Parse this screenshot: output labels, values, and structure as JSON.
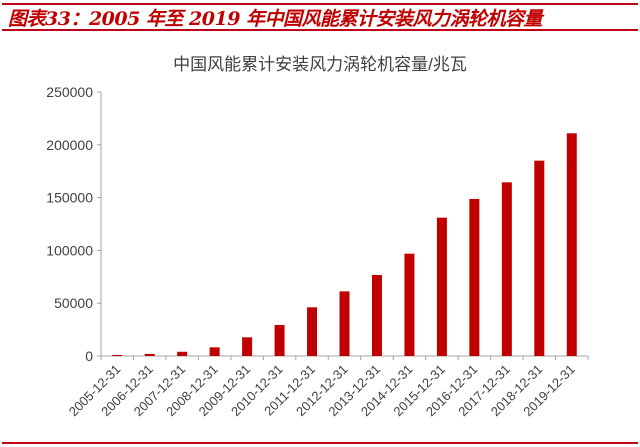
{
  "figure_title": "图表33：2005 年至 2019 年中国风能累计安装风力涡轮机容量",
  "colors": {
    "bar": "#c00000",
    "accent_rule": "#c0001a",
    "axis": "#a6a6a6",
    "text": "#404040"
  },
  "chart_data": {
    "type": "bar",
    "title": "中国风能累计安装风力涡轮机容量/兆瓦",
    "xlabel": "",
    "ylabel": "",
    "ylim": [
      0,
      250000
    ],
    "yticks": [
      0,
      50000,
      100000,
      150000,
      200000,
      250000
    ],
    "grid": false,
    "categories": [
      "2005-12-31",
      "2006-12-31",
      "2007-12-31",
      "2008-12-31",
      "2009-12-31",
      "2010-12-31",
      "2011-12-31",
      "2012-12-31",
      "2013-12-31",
      "2014-12-31",
      "2015-12-31",
      "2016-12-31",
      "2017-12-31",
      "2018-12-31",
      "2019-12-31"
    ],
    "values": [
      1000,
      2000,
      4000,
      8200,
      17700,
      29400,
      46100,
      61200,
      76700,
      96900,
      131000,
      148700,
      164500,
      185000,
      210900
    ]
  }
}
